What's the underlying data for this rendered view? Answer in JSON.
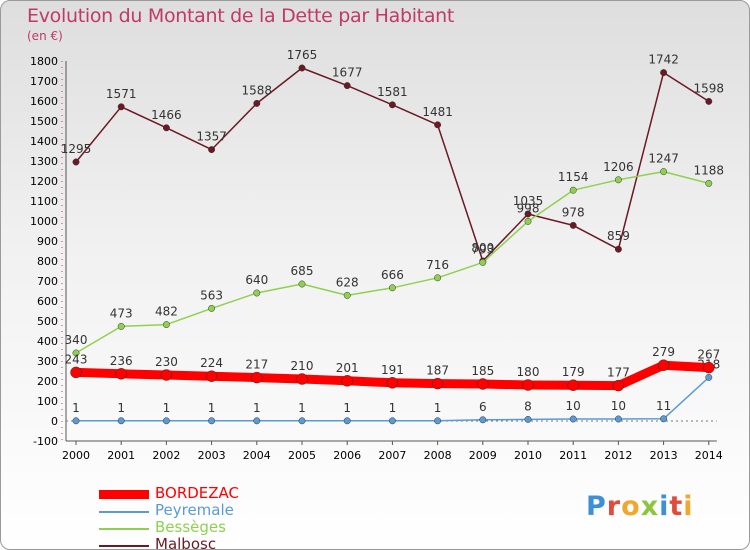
{
  "title": "Evolution du Montant de la Dette par Habitant",
  "unit": "(en €)",
  "logo": "Proxiti",
  "chart_data": {
    "type": "line",
    "title": "Evolution du Montant de la Dette par Habitant",
    "ylabel": "(en €)",
    "xlabel": "",
    "ylim": [
      -100,
      1800
    ],
    "grid": false,
    "legend_position": "bottom-left",
    "x": [
      "2000",
      "2001",
      "2002",
      "2003",
      "2004",
      "2005",
      "2006",
      "2007",
      "2008",
      "2009",
      "2010",
      "2011",
      "2012",
      "2013",
      "2014"
    ],
    "yticks": [
      "-100",
      "0",
      "100",
      "200",
      "300",
      "400",
      "500",
      "600",
      "700",
      "800",
      "900",
      "1000",
      "1100",
      "1200",
      "1300",
      "1400",
      "1500",
      "1600",
      "1700",
      "1800"
    ],
    "series": [
      {
        "name": "Malbosc",
        "color": "#6b1a24",
        "values": [
          1295,
          1571,
          1466,
          1357,
          1588,
          1765,
          1677,
          1581,
          1481,
          800,
          1035,
          978,
          859,
          1742,
          1598
        ]
      },
      {
        "name": "Bessèges",
        "color": "#8fd14f",
        "values": [
          340,
          473,
          482,
          563,
          640,
          685,
          628,
          666,
          716,
          793,
          998,
          1154,
          1206,
          1247,
          1188
        ]
      },
      {
        "name": "Peyremale",
        "color": "#5a9bd5",
        "values": [
          1,
          1,
          1,
          1,
          1,
          1,
          1,
          1,
          1,
          6,
          8,
          10,
          10,
          11,
          218
        ]
      },
      {
        "name": "BORDEZAC",
        "color": "#ff0000",
        "values": [
          243,
          236,
          230,
          224,
          217,
          210,
          201,
          191,
          187,
          185,
          180,
          179,
          177,
          279,
          267
        ]
      }
    ]
  }
}
